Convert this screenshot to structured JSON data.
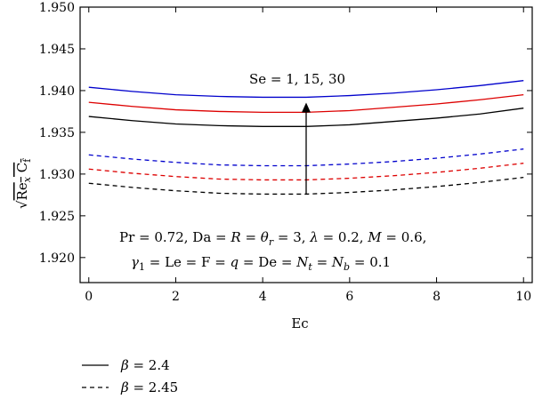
{
  "chart_data": {
    "type": "line",
    "xlabel": "Ec",
    "ylabel": "√Re_x C_f",
    "xlim": [
      -0.2,
      10.2
    ],
    "ylim": [
      1.917,
      1.95
    ],
    "x_ticks": [
      0,
      2,
      4,
      6,
      8,
      10
    ],
    "x_tick_labels": [
      "0",
      "2",
      "4",
      "6",
      "8",
      "10"
    ],
    "y_ticks": [
      1.92,
      1.925,
      1.93,
      1.935,
      1.94,
      1.945,
      1.95
    ],
    "y_tick_labels": [
      "1.920",
      "1.925",
      "1.930",
      "1.935",
      "1.940",
      "1.945",
      "1.950"
    ],
    "x": [
      0,
      1,
      2,
      3,
      4,
      4.5,
      5,
      6,
      7,
      8,
      9,
      10
    ],
    "series": [
      {
        "color": "#0000cc",
        "dash": "solid",
        "values": [
          1.9404,
          1.9399,
          1.9395,
          1.9393,
          1.9392,
          1.9392,
          1.9392,
          1.9394,
          1.9397,
          1.9401,
          1.9406,
          1.9412
        ]
      },
      {
        "color": "#dd0000",
        "dash": "solid",
        "values": [
          1.9386,
          1.9381,
          1.9377,
          1.9375,
          1.9374,
          1.9374,
          1.9374,
          1.9376,
          1.938,
          1.9384,
          1.9389,
          1.9395
        ]
      },
      {
        "color": "#000000",
        "dash": "solid",
        "values": [
          1.9369,
          1.9364,
          1.936,
          1.9358,
          1.9357,
          1.9357,
          1.9357,
          1.9359,
          1.9363,
          1.9367,
          1.9372,
          1.9379
        ]
      },
      {
        "color": "#0000cc",
        "dash": "dashed",
        "values": [
          1.9323,
          1.9318,
          1.9314,
          1.9311,
          1.931,
          1.931,
          1.931,
          1.9312,
          1.9315,
          1.9319,
          1.9324,
          1.933
        ]
      },
      {
        "color": "#dd0000",
        "dash": "dashed",
        "values": [
          1.9306,
          1.9301,
          1.9297,
          1.9294,
          1.9293,
          1.9293,
          1.9293,
          1.9295,
          1.9298,
          1.9302,
          1.9307,
          1.9313
        ]
      },
      {
        "color": "#000000",
        "dash": "dashed",
        "values": [
          1.9289,
          1.9284,
          1.928,
          1.9277,
          1.9276,
          1.9276,
          1.9276,
          1.9278,
          1.9281,
          1.9285,
          1.929,
          1.9296
        ]
      }
    ],
    "arrow": {
      "x": 5,
      "y_from": 1.9276,
      "y_to": 1.9392,
      "label": "Se = 1, 15, 30"
    },
    "annotation_lines": [
      "Pr = 0.72, Da = R = θr = 3, λ = 0.2, M = 0.6,",
      "γ1 = Le = F = q = De = Nt = Nb = 0.1"
    ],
    "legend": [
      {
        "label": "β = 2.4",
        "dash": "solid",
        "color": "#000000"
      },
      {
        "label": "β = 2.45",
        "dash": "dashed",
        "color": "#000000"
      }
    ],
    "grid": false
  }
}
